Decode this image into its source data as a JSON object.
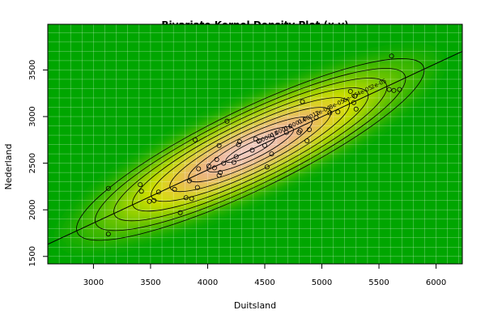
{
  "chart_data": {
    "type": "contour",
    "title": "Bivariate Kernel Density Plot (x,y)",
    "xlabel": "Duitsland",
    "ylabel": "Nederland",
    "xlim": [
      2600,
      6230
    ],
    "ylim": [
      1420,
      3990
    ],
    "xticks": [
      3000,
      3500,
      4000,
      4500,
      5000,
      5500,
      6000
    ],
    "yticks": [
      1500,
      2000,
      2500,
      3000,
      3500
    ],
    "grid": true,
    "colors": {
      "background": "#00A600",
      "grid": "#FFFFFF",
      "bands": [
        "#00A600",
        "#1CAE00",
        "#40B900",
        "#6BC500",
        "#A0D400",
        "#D6DF00",
        "#E6C532",
        "#EBB473",
        "#EEB8A0",
        "#F2D0C8"
      ]
    },
    "contour_labels": [
      "2e-05",
      "4e-05",
      "6e-05",
      "8e-05",
      "1e-04",
      "0.00012",
      "0.00014",
      "0.00016",
      "0.00018"
    ],
    "points": [
      [
        3130,
        2230
      ],
      [
        3130,
        1740
      ],
      [
        3410,
        2270
      ],
      [
        3420,
        2200
      ],
      [
        3490,
        2090
      ],
      [
        3530,
        2100
      ],
      [
        3570,
        2190
      ],
      [
        3710,
        2220
      ],
      [
        3760,
        1970
      ],
      [
        3810,
        2130
      ],
      [
        3860,
        2120
      ],
      [
        3840,
        2310
      ],
      [
        3890,
        2750
      ],
      [
        3910,
        2240
      ],
      [
        3920,
        2440
      ],
      [
        4010,
        2470
      ],
      [
        4060,
        2450
      ],
      [
        4080,
        2540
      ],
      [
        4100,
        2370
      ],
      [
        4100,
        2690
      ],
      [
        4110,
        2400
      ],
      [
        4140,
        2500
      ],
      [
        4170,
        2950
      ],
      [
        4230,
        2510
      ],
      [
        4250,
        2570
      ],
      [
        4270,
        2700
      ],
      [
        4280,
        2730
      ],
      [
        4390,
        2640
      ],
      [
        4420,
        2760
      ],
      [
        4450,
        2740
      ],
      [
        4500,
        2690
      ],
      [
        4520,
        2460
      ],
      [
        4560,
        2600
      ],
      [
        4690,
        2830
      ],
      [
        4800,
        2830
      ],
      [
        4810,
        2850
      ],
      [
        4830,
        3160
      ],
      [
        4870,
        2740
      ],
      [
        4890,
        2860
      ],
      [
        4950,
        2990
      ],
      [
        5070,
        3040
      ],
      [
        5140,
        3050
      ],
      [
        5250,
        3270
      ],
      [
        5280,
        3150
      ],
      [
        5290,
        3220
      ],
      [
        5300,
        3080
      ],
      [
        5590,
        3290
      ],
      [
        5610,
        3650
      ],
      [
        5630,
        3280
      ],
      [
        5680,
        3290
      ]
    ],
    "regression_line": {
      "x": [
        2600,
        6230
      ],
      "y": [
        1630,
        3700
      ]
    }
  }
}
